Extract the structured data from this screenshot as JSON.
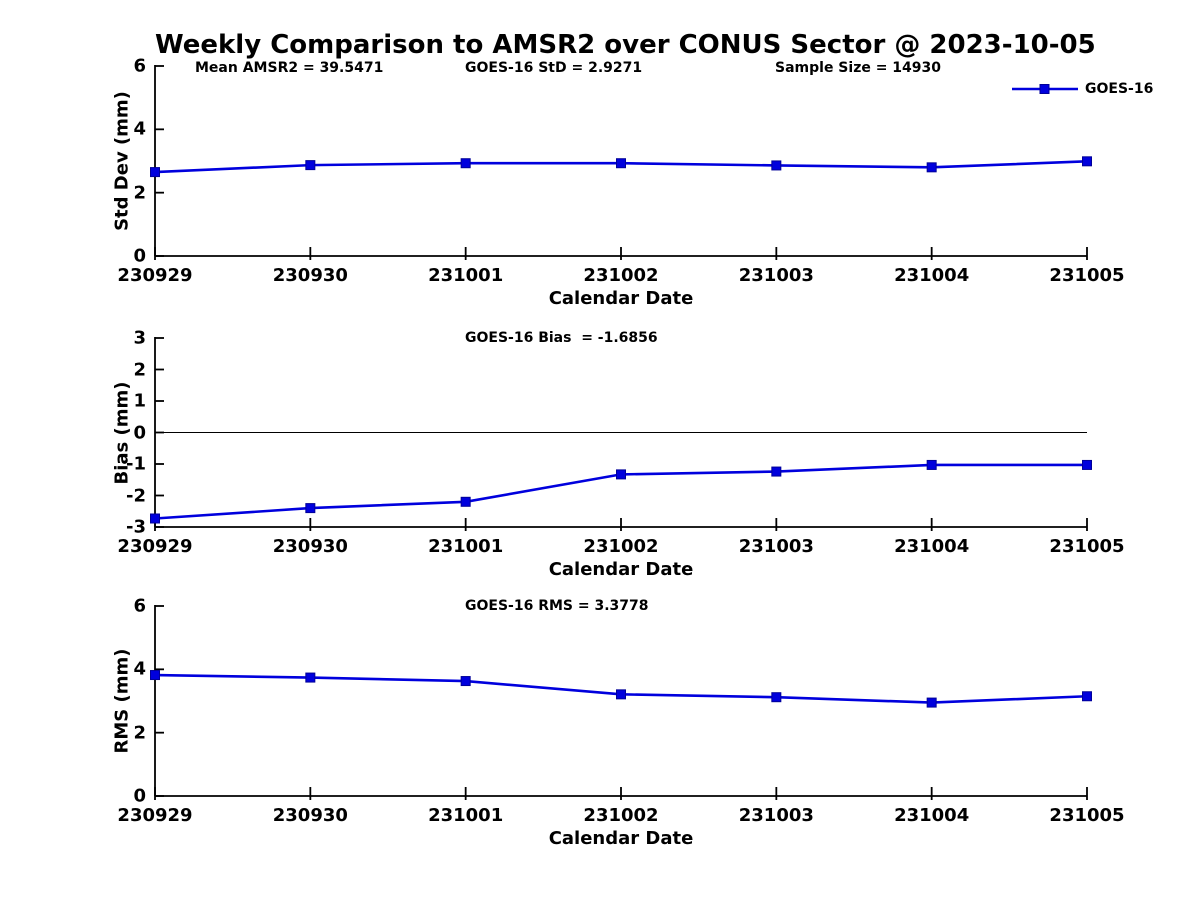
{
  "figure": {
    "title": "Weekly Comparison to AMSR2 over CONUS Sector @ 2023-10-05",
    "background_color": "#ffffff",
    "text_color": "#000000"
  },
  "legend": {
    "label": "GOES-16"
  },
  "series_style": {
    "line_color": "#0000dd",
    "marker_edge_color": "#000099",
    "marker": "square"
  },
  "chart_data": [
    {
      "id": "std-dev",
      "type": "line",
      "annotations": [
        "Mean AMSR2 = 39.5471",
        "GOES-16 StD = 2.9271",
        "Sample Size = 14930"
      ],
      "xlabel": "Calendar Date",
      "ylabel": "Std Dev (mm)",
      "ylim": [
        0,
        6
      ],
      "yticks": [
        6,
        4,
        2,
        0
      ],
      "categories": [
        "230929",
        "230930",
        "231001",
        "231002",
        "231003",
        "231004",
        "231005"
      ],
      "series": [
        {
          "name": "GOES-16",
          "values": [
            2.65,
            2.87,
            2.93,
            2.93,
            2.86,
            2.8,
            2.99
          ]
        }
      ],
      "grid": false,
      "zero_line": false,
      "legend_position": "outside-top-right"
    },
    {
      "id": "bias",
      "type": "line",
      "annotations": [
        "GOES-16 Bias  = -1.6856"
      ],
      "xlabel": "Calendar Date",
      "ylabel": "Bias (mm)",
      "ylim": [
        -3,
        3
      ],
      "yticks": [
        3,
        2,
        1,
        0,
        -1,
        -2,
        -3
      ],
      "categories": [
        "230929",
        "230930",
        "231001",
        "231002",
        "231003",
        "231004",
        "231005"
      ],
      "series": [
        {
          "name": "GOES-16",
          "values": [
            -2.73,
            -2.4,
            -2.2,
            -1.33,
            -1.24,
            -1.03,
            -1.03
          ]
        }
      ],
      "grid": false,
      "zero_line": true
    },
    {
      "id": "rms",
      "type": "line",
      "annotations": [
        "GOES-16 RMS = 3.3778"
      ],
      "xlabel": "Calendar Date",
      "ylabel": "RMS (mm)",
      "ylim": [
        0,
        6
      ],
      "yticks": [
        6,
        4,
        2,
        0
      ],
      "categories": [
        "230929",
        "230930",
        "231001",
        "231002",
        "231003",
        "231004",
        "231005"
      ],
      "series": [
        {
          "name": "GOES-16",
          "values": [
            3.82,
            3.74,
            3.63,
            3.21,
            3.12,
            2.95,
            3.15
          ]
        }
      ],
      "grid": false,
      "zero_line": false
    }
  ]
}
